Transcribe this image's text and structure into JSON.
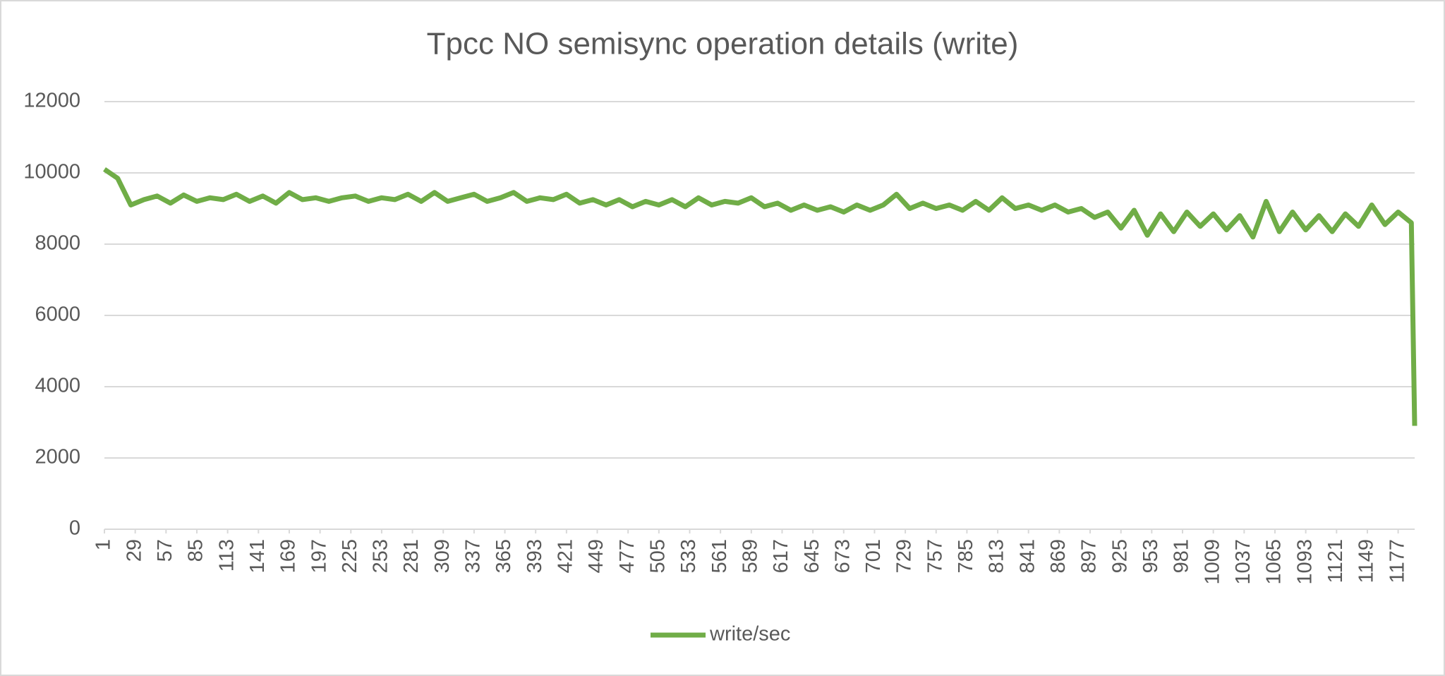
{
  "chart_data": {
    "type": "line",
    "title": "Tpcc NO semisync operation details (write)",
    "x": [
      1,
      13,
      25,
      37,
      49,
      61,
      73,
      85,
      97,
      109,
      121,
      133,
      145,
      157,
      169,
      181,
      193,
      205,
      217,
      229,
      241,
      253,
      265,
      277,
      289,
      301,
      313,
      325,
      337,
      349,
      361,
      373,
      385,
      397,
      409,
      421,
      433,
      445,
      457,
      469,
      481,
      493,
      505,
      517,
      529,
      541,
      553,
      565,
      577,
      589,
      601,
      613,
      625,
      637,
      649,
      661,
      673,
      685,
      697,
      709,
      721,
      733,
      745,
      757,
      769,
      781,
      793,
      805,
      817,
      829,
      841,
      853,
      865,
      877,
      889,
      901,
      913,
      925,
      937,
      949,
      961,
      973,
      985,
      997,
      1009,
      1021,
      1033,
      1045,
      1057,
      1069,
      1081,
      1093,
      1105,
      1117,
      1129,
      1141,
      1153,
      1165,
      1177,
      1189,
      1192
    ],
    "series": [
      {
        "name": "write/sec",
        "color": "#70ad47",
        "values": [
          10100,
          9850,
          9100,
          9250,
          9350,
          9150,
          9380,
          9200,
          9300,
          9250,
          9400,
          9200,
          9350,
          9150,
          9450,
          9250,
          9300,
          9200,
          9300,
          9350,
          9200,
          9300,
          9250,
          9400,
          9200,
          9450,
          9200,
          9300,
          9400,
          9200,
          9300,
          9450,
          9200,
          9300,
          9250,
          9400,
          9150,
          9250,
          9100,
          9250,
          9050,
          9200,
          9100,
          9250,
          9050,
          9300,
          9100,
          9200,
          9150,
          9300,
          9050,
          9150,
          8950,
          9100,
          8950,
          9050,
          8900,
          9100,
          8950,
          9100,
          9400,
          9000,
          9150,
          9000,
          9100,
          8950,
          9200,
          8950,
          9300,
          9000,
          9100,
          8950,
          9100,
          8900,
          9000,
          8750,
          8900,
          8450,
          8950,
          8250,
          8850,
          8350,
          8900,
          8500,
          8850,
          8400,
          8800,
          8200,
          9200,
          8350,
          8900,
          8400,
          8800,
          8350,
          8850,
          8500,
          9100,
          8550,
          8900,
          8600,
          2900
        ]
      }
    ],
    "xlim": [
      1,
      1192
    ],
    "xticks": [
      1,
      29,
      57,
      85,
      113,
      141,
      169,
      197,
      225,
      253,
      281,
      309,
      337,
      365,
      393,
      421,
      449,
      477,
      505,
      533,
      561,
      589,
      617,
      645,
      673,
      701,
      729,
      757,
      785,
      813,
      841,
      869,
      897,
      925,
      953,
      981,
      1009,
      1037,
      1065,
      1093,
      1121,
      1149,
      1177
    ],
    "ylim": [
      0,
      12000
    ],
    "yticks": [
      0,
      2000,
      4000,
      6000,
      8000,
      10000,
      12000
    ],
    "grid": true,
    "legend": "bottom"
  }
}
